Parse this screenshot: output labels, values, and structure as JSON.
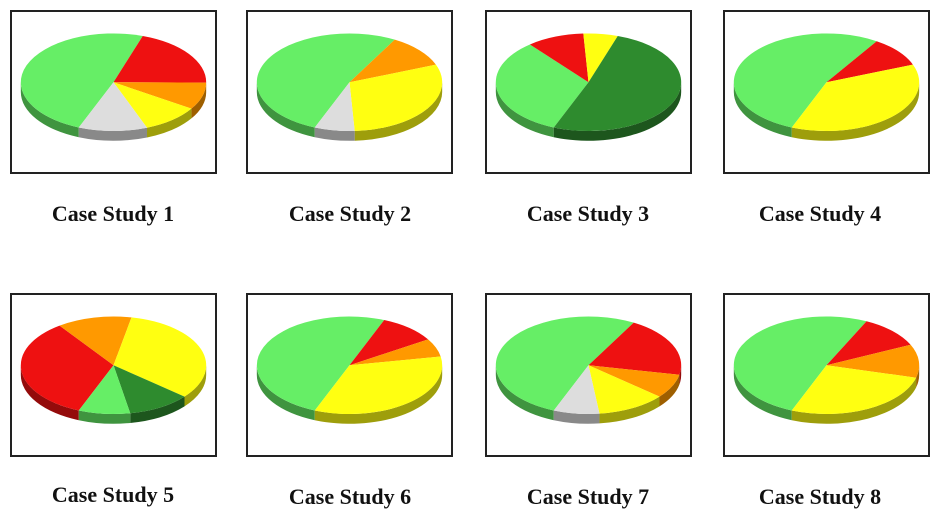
{
  "colors": {
    "light_green": "#66ee66",
    "dark_green": "#2e8b2e",
    "red": "#ee1111",
    "orange": "#ff9900",
    "yellow": "#ffff11",
    "gray": "#dddddd"
  },
  "chart_data": [
    {
      "type": "pie",
      "title": "Case Study 1",
      "slices": [
        {
          "color": "light_green",
          "value": 49
        },
        {
          "color": "red",
          "value": 20
        },
        {
          "color": "orange",
          "value": 9
        },
        {
          "color": "yellow",
          "value": 10
        },
        {
          "color": "gray",
          "value": 12
        }
      ]
    },
    {
      "type": "pie",
      "title": "Case Study 2",
      "slices": [
        {
          "color": "light_green",
          "value": 52
        },
        {
          "color": "orange",
          "value": 11
        },
        {
          "color": "yellow",
          "value": 30
        },
        {
          "color": "gray",
          "value": 7
        }
      ]
    },
    {
      "type": "pie",
      "title": "Case Study 3",
      "slices": [
        {
          "color": "light_green",
          "value": 33
        },
        {
          "color": "red",
          "value": 10
        },
        {
          "color": "yellow",
          "value": 6
        },
        {
          "color": "dark_green",
          "value": 51
        }
      ]
    },
    {
      "type": "pie",
      "title": "Case Study 4",
      "slices": [
        {
          "color": "light_green",
          "value": 53
        },
        {
          "color": "red",
          "value": 10
        },
        {
          "color": "yellow",
          "value": 37
        }
      ]
    },
    {
      "type": "pie",
      "title": "Case Study 5",
      "slices": [
        {
          "color": "red",
          "value": 34
        },
        {
          "color": "orange",
          "value": 13
        },
        {
          "color": "yellow",
          "value": 33
        },
        {
          "color": "dark_green",
          "value": 11
        },
        {
          "color": "light_green",
          "value": 9
        }
      ]
    },
    {
      "type": "pie",
      "title": "Case Study 6",
      "slices": [
        {
          "color": "light_green",
          "value": 50
        },
        {
          "color": "red",
          "value": 10
        },
        {
          "color": "orange",
          "value": 6
        },
        {
          "color": "yellow",
          "value": 34
        }
      ]
    },
    {
      "type": "pie",
      "title": "Case Study 7",
      "slices": [
        {
          "color": "light_green",
          "value": 52
        },
        {
          "color": "red",
          "value": 20
        },
        {
          "color": "orange",
          "value": 8
        },
        {
          "color": "yellow",
          "value": 12
        },
        {
          "color": "gray",
          "value": 8
        }
      ]
    },
    {
      "type": "pie",
      "title": "Case Study 8",
      "slices": [
        {
          "color": "light_green",
          "value": 51
        },
        {
          "color": "red",
          "value": 11
        },
        {
          "color": "orange",
          "value": 11
        },
        {
          "color": "yellow",
          "value": 27
        }
      ]
    }
  ]
}
